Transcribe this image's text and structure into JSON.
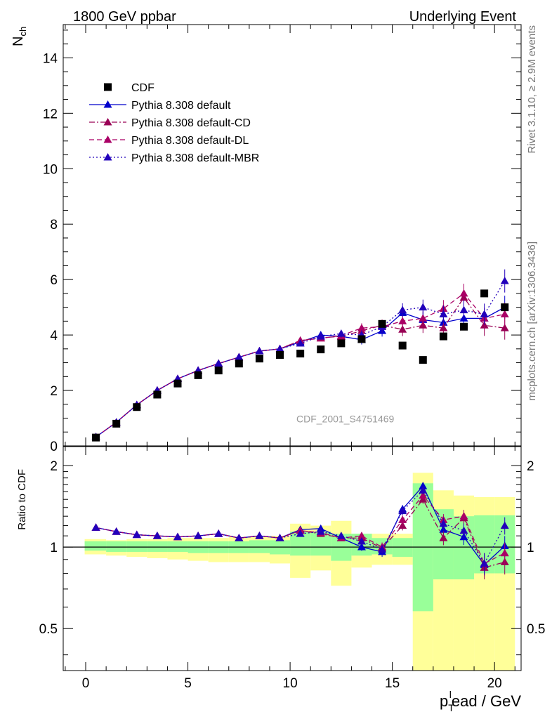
{
  "header": {
    "left_title": "1800 GeV ppbar",
    "right_title": "Underlying Event"
  },
  "side_text": {
    "rivet": "Rivet 3.1.10, ≥ 2.9M events",
    "mcplots": "mcplots.cern.ch [arXiv:1306.3436]"
  },
  "watermark": "CDF_2001_S4751469",
  "chart_data": [
    {
      "type": "line",
      "panel": "main",
      "ylabel": "N",
      "ylabel_sub": "ch",
      "xlabel": "",
      "xlim": [
        -1.1,
        21.3
      ],
      "ylim": [
        0,
        15.2
      ],
      "x_ticks": [
        0,
        5,
        10,
        15,
        20
      ],
      "y_ticks": [
        0,
        2,
        4,
        6,
        8,
        10,
        12,
        14
      ],
      "y_tick_labels": [
        "0",
        "2",
        "4",
        "6",
        "8",
        "10",
        "12",
        "14"
      ],
      "legend_position": "top-left",
      "legend": [
        "CDF",
        "Pythia 8.308 default",
        "Pythia 8.308 default-CD",
        "Pythia 8.308 default-DL",
        "Pythia 8.308 default-MBR"
      ],
      "x": [
        0.5,
        1.5,
        2.5,
        3.5,
        4.5,
        5.5,
        6.5,
        7.5,
        8.5,
        9.5,
        10.5,
        11.5,
        12.5,
        13.5,
        14.5,
        15.5,
        16.5,
        17.5,
        18.5,
        19.5,
        20.5
      ],
      "series": [
        {
          "name": "CDF",
          "style": "square",
          "color": "#000000",
          "values": [
            0.3,
            0.8,
            1.4,
            1.85,
            2.25,
            2.55,
            2.72,
            2.97,
            3.15,
            3.28,
            3.33,
            3.48,
            3.7,
            3.85,
            4.4,
            3.62,
            3.1,
            3.95,
            4.3,
            5.5,
            5.0
          ]
        },
        {
          "name": "Pythia 8.308 default",
          "style": "solid",
          "color": "#0000cc",
          "values": [
            0.32,
            0.85,
            1.48,
            2.0,
            2.42,
            2.72,
            2.97,
            3.2,
            3.42,
            3.5,
            3.75,
            4.0,
            3.95,
            3.83,
            4.15,
            4.8,
            4.55,
            4.45,
            4.6,
            4.6,
            5.0
          ]
        },
        {
          "name": "Pythia 8.308 default-CD",
          "style": "dashdot",
          "color": "#990055",
          "values": [
            0.32,
            0.85,
            1.48,
            2.0,
            2.42,
            2.72,
            2.97,
            3.2,
            3.42,
            3.5,
            3.8,
            3.9,
            3.95,
            4.15,
            4.35,
            4.2,
            4.35,
            4.25,
            5.35,
            4.35,
            4.25
          ]
        },
        {
          "name": "Pythia 8.308 default-DL",
          "style": "dashed",
          "color": "#aa0066",
          "values": [
            0.32,
            0.85,
            1.48,
            2.0,
            2.42,
            2.72,
            2.97,
            3.2,
            3.42,
            3.5,
            3.8,
            3.88,
            3.98,
            4.25,
            4.3,
            4.5,
            4.6,
            4.95,
            5.5,
            4.6,
            4.75
          ]
        },
        {
          "name": "Pythia 8.308 default-MBR",
          "style": "dotted",
          "color": "#2200bb",
          "values": [
            0.32,
            0.85,
            1.48,
            2.0,
            2.42,
            2.72,
            2.97,
            3.2,
            3.42,
            3.5,
            3.7,
            3.95,
            4.05,
            4.0,
            4.3,
            4.9,
            5.0,
            4.75,
            4.9,
            4.75,
            5.95
          ]
        }
      ]
    },
    {
      "type": "line",
      "panel": "ratio",
      "ylabel": "Ratio to CDF",
      "xlabel": "p",
      "xlabel_sub": "T",
      "xlabel_sup": "l",
      "xlabel_rest": "ead / GeV",
      "xlim": [
        -1.1,
        21.3
      ],
      "ylim": [
        0.35,
        2.35
      ],
      "x_ticks": [
        0,
        5,
        10,
        15,
        20
      ],
      "x_tick_labels": [
        "0",
        "5",
        "10",
        "15",
        "20"
      ],
      "y_ticks": [
        0.5,
        1,
        2
      ],
      "y_tick_labels": [
        "0.5",
        "1",
        "2"
      ],
      "reference_line": 1.0,
      "bin_edges": [
        -0.05,
        1,
        2,
        3,
        4,
        5,
        6,
        7,
        8,
        9,
        10,
        11,
        12,
        13,
        14,
        15,
        16,
        17,
        18,
        19,
        20,
        21
      ],
      "band_inner": [
        [
          0.97,
          1.05
        ],
        [
          0.96,
          1.05
        ],
        [
          0.96,
          1.05
        ],
        [
          0.96,
          1.05
        ],
        [
          0.96,
          1.05
        ],
        [
          0.95,
          1.05
        ],
        [
          0.95,
          1.05
        ],
        [
          0.95,
          1.05
        ],
        [
          0.95,
          1.06
        ],
        [
          0.94,
          1.06
        ],
        [
          0.93,
          1.14
        ],
        [
          0.93,
          1.14
        ],
        [
          0.89,
          1.12
        ],
        [
          0.93,
          1.12
        ],
        [
          0.94,
          1.08
        ],
        [
          0.92,
          1.08
        ],
        [
          0.58,
          1.72
        ],
        [
          0.76,
          1.38
        ],
        [
          0.76,
          1.3
        ],
        [
          0.8,
          1.31
        ],
        [
          0.8,
          1.31
        ]
      ],
      "band_outer": [
        [
          0.94,
          1.07
        ],
        [
          0.93,
          1.06
        ],
        [
          0.92,
          1.07
        ],
        [
          0.91,
          1.07
        ],
        [
          0.9,
          1.08
        ],
        [
          0.89,
          1.08
        ],
        [
          0.88,
          1.08
        ],
        [
          0.88,
          1.09
        ],
        [
          0.88,
          1.09
        ],
        [
          0.87,
          1.1
        ],
        [
          0.77,
          1.22
        ],
        [
          0.82,
          1.2
        ],
        [
          0.72,
          1.25
        ],
        [
          0.84,
          1.12
        ],
        [
          0.86,
          1.12
        ],
        [
          0.86,
          1.12
        ],
        [
          0.34,
          1.88
        ],
        [
          0.35,
          1.62
        ],
        [
          0.33,
          1.55
        ],
        [
          0.33,
          1.53
        ],
        [
          0.33,
          1.53
        ]
      ],
      "series": [
        {
          "name": "Pythia 8.308 default",
          "style": "solid",
          "color": "#0000cc",
          "values": [
            1.18,
            1.14,
            1.11,
            1.1,
            1.09,
            1.1,
            1.12,
            1.08,
            1.1,
            1.08,
            1.16,
            1.17,
            1.08,
            1.0,
            0.96,
            1.38,
            1.68,
            1.16,
            1.09,
            0.86,
            1.01
          ]
        },
        {
          "name": "Pythia 8.308 default-CD",
          "style": "dashdot",
          "color": "#990055",
          "values": [
            1.18,
            1.14,
            1.11,
            1.1,
            1.09,
            1.1,
            1.12,
            1.08,
            1.1,
            1.08,
            1.15,
            1.12,
            1.08,
            1.08,
            0.99,
            1.2,
            1.5,
            1.08,
            1.28,
            0.84,
            0.88
          ]
        },
        {
          "name": "Pythia 8.308 default-DL",
          "style": "dashed",
          "color": "#aa0066",
          "values": [
            1.18,
            1.14,
            1.11,
            1.1,
            1.09,
            1.1,
            1.12,
            1.08,
            1.1,
            1.08,
            1.15,
            1.13,
            1.08,
            1.1,
            1.0,
            1.26,
            1.55,
            1.26,
            1.3,
            0.87,
            0.95
          ]
        },
        {
          "name": "Pythia 8.308 default-MBR",
          "style": "dotted",
          "color": "#2200bb",
          "values": [
            1.18,
            1.14,
            1.11,
            1.1,
            1.09,
            1.1,
            1.12,
            1.08,
            1.1,
            1.08,
            1.12,
            1.14,
            1.1,
            1.05,
            0.98,
            1.36,
            1.62,
            1.22,
            1.15,
            0.87,
            1.2
          ]
        }
      ]
    }
  ]
}
